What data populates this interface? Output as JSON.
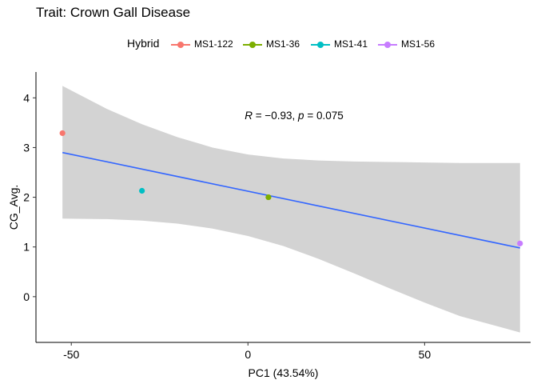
{
  "chart_data": {
    "type": "scatter",
    "title": "Trait: Crown Gall Disease",
    "xlabel": "PC1 (43.54%)",
    "ylabel": "CG_Avg.",
    "xlim": [
      -60,
      80
    ],
    "ylim": [
      -0.92,
      4.52
    ],
    "xticks": [
      -50,
      0,
      50
    ],
    "yticks": [
      0,
      1,
      2,
      3,
      4
    ],
    "legend": {
      "title": "Hybrid",
      "placement": "top"
    },
    "series": [
      {
        "name": "MS1-122",
        "color": "#F8766D",
        "x": [
          -52.5
        ],
        "y": [
          3.29
        ]
      },
      {
        "name": "MS1-36",
        "color": "#7CAE00",
        "x": [
          5.8
        ],
        "y": [
          2.0
        ]
      },
      {
        "name": "MS1-41",
        "color": "#00BFC4",
        "x": [
          -30.0
        ],
        "y": [
          2.13
        ]
      },
      {
        "name": "MS1-56",
        "color": "#C77CFF",
        "x": [
          77.0
        ],
        "y": [
          1.07
        ]
      }
    ],
    "regression": {
      "color": "#3366FF",
      "x": [
        -52.5,
        77.0
      ],
      "y": [
        2.9,
        0.98
      ],
      "band_color": "#D3D3D3",
      "band_upper": [
        [
          -52.5,
          4.24
        ],
        [
          -40,
          3.78
        ],
        [
          -30,
          3.47
        ],
        [
          -20,
          3.21
        ],
        [
          -10,
          3.0
        ],
        [
          0,
          2.86
        ],
        [
          10,
          2.78
        ],
        [
          20,
          2.74
        ],
        [
          30,
          2.72
        ],
        [
          40,
          2.71
        ],
        [
          50,
          2.7
        ],
        [
          60,
          2.69
        ],
        [
          77.0,
          2.69
        ]
      ],
      "band_lower": [
        [
          -52.5,
          1.57
        ],
        [
          -40,
          1.56
        ],
        [
          -30,
          1.53
        ],
        [
          -20,
          1.47
        ],
        [
          -10,
          1.37
        ],
        [
          0,
          1.22
        ],
        [
          10,
          1.02
        ],
        [
          20,
          0.76
        ],
        [
          30,
          0.47
        ],
        [
          40,
          0.17
        ],
        [
          50,
          -0.12
        ],
        [
          60,
          -0.39
        ],
        [
          77.0,
          -0.72
        ]
      ]
    },
    "annotation": "R = −0.93, p = 0.075"
  }
}
